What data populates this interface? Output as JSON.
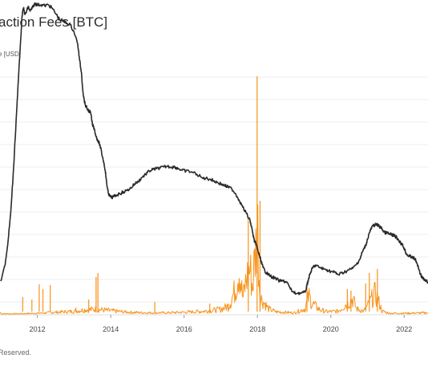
{
  "header": {
    "title": "action Fees [BTC]",
    "legend_label": "e [USD]"
  },
  "footer": {
    "text": " Reserved."
  },
  "chart_data": {
    "type": "line",
    "x_ticks": [
      "2012",
      "2014",
      "2016",
      "2018",
      "2020",
      "2022"
    ],
    "xlim": [
      2010.98,
      2022.65
    ],
    "grid": true,
    "colors": {
      "price": "#2a2a2a",
      "fees": "#f7931a",
      "grid": "#eeeeee"
    },
    "series": [
      {
        "id": "price",
        "axis": "log-left",
        "points": [
          [
            2011.0,
            350
          ],
          [
            2011.12,
            330
          ],
          [
            2011.2,
            300
          ],
          [
            2011.28,
            260
          ],
          [
            2011.35,
            210
          ],
          [
            2011.42,
            150
          ],
          [
            2011.48,
            100
          ],
          [
            2011.55,
            45
          ],
          [
            2011.58,
            20
          ],
          [
            2011.62,
            10
          ],
          [
            2011.66,
            18
          ],
          [
            2011.7,
            15
          ],
          [
            2011.75,
            8
          ],
          [
            2011.8,
            14
          ],
          [
            2011.86,
            10
          ],
          [
            2011.92,
            5
          ],
          [
            2011.96,
            5
          ],
          [
            2012.0,
            6
          ],
          [
            2012.1,
            6
          ],
          [
            2012.2,
            7
          ],
          [
            2012.3,
            6
          ],
          [
            2012.4,
            10
          ],
          [
            2012.5,
            17
          ],
          [
            2012.6,
            24
          ],
          [
            2012.7,
            26
          ],
          [
            2012.8,
            29
          ],
          [
            2012.9,
            31
          ],
          [
            2013.0,
            40
          ],
          [
            2013.1,
            55
          ],
          [
            2013.15,
            75
          ],
          [
            2013.2,
            90
          ],
          [
            2013.25,
            118
          ],
          [
            2013.3,
            130
          ],
          [
            2013.35,
            135
          ],
          [
            2013.4,
            138
          ],
          [
            2013.45,
            140
          ],
          [
            2013.5,
            155
          ],
          [
            2013.55,
            160
          ],
          [
            2013.6,
            170
          ],
          [
            2013.65,
            175
          ],
          [
            2013.7,
            180
          ],
          [
            2013.75,
            190
          ],
          [
            2013.8,
            200
          ],
          [
            2013.85,
            212
          ],
          [
            2013.88,
            225
          ],
          [
            2013.9,
            232
          ],
          [
            2013.93,
            240
          ],
          [
            2013.97,
            244
          ],
          [
            2014.02,
            246
          ],
          [
            2014.07,
            245
          ],
          [
            2014.15,
            243
          ],
          [
            2014.25,
            241
          ],
          [
            2014.35,
            239
          ],
          [
            2014.45,
            237
          ],
          [
            2014.55,
            234
          ],
          [
            2014.65,
            229
          ],
          [
            2014.75,
            226
          ],
          [
            2014.85,
            221
          ],
          [
            2014.95,
            217
          ],
          [
            2015.05,
            213
          ],
          [
            2015.15,
            211
          ],
          [
            2015.25,
            210
          ],
          [
            2015.35,
            209
          ],
          [
            2015.45,
            208
          ],
          [
            2015.55,
            207
          ],
          [
            2015.65,
            208
          ],
          [
            2015.75,
            208
          ],
          [
            2015.85,
            210
          ],
          [
            2015.95,
            212
          ],
          [
            2016.05,
            213
          ],
          [
            2016.2,
            214
          ],
          [
            2016.35,
            217
          ],
          [
            2016.5,
            222
          ],
          [
            2016.6,
            222
          ],
          [
            2016.7,
            223
          ],
          [
            2016.8,
            225
          ],
          [
            2016.9,
            227
          ],
          [
            2017.0,
            229
          ],
          [
            2017.1,
            231
          ],
          [
            2017.2,
            233
          ],
          [
            2017.3,
            235
          ],
          [
            2017.4,
            241
          ],
          [
            2017.5,
            249
          ],
          [
            2017.6,
            258
          ],
          [
            2017.7,
            266
          ],
          [
            2017.8,
            275
          ],
          [
            2017.85,
            285
          ],
          [
            2017.9,
            297
          ],
          [
            2017.93,
            302
          ],
          [
            2017.96,
            303
          ],
          [
            2018.0,
            310
          ],
          [
            2018.05,
            318
          ],
          [
            2018.1,
            325
          ],
          [
            2018.15,
            333
          ],
          [
            2018.2,
            337
          ],
          [
            2018.25,
            340
          ],
          [
            2018.3,
            342
          ],
          [
            2018.4,
            345
          ],
          [
            2018.5,
            347
          ],
          [
            2018.6,
            350
          ],
          [
            2018.7,
            350
          ],
          [
            2018.8,
            351
          ],
          [
            2018.9,
            360
          ],
          [
            2019.0,
            365
          ],
          [
            2019.1,
            365
          ],
          [
            2019.2,
            365
          ],
          [
            2019.3,
            364
          ],
          [
            2019.35,
            355
          ],
          [
            2019.4,
            346
          ],
          [
            2019.45,
            339
          ],
          [
            2019.5,
            334
          ],
          [
            2019.55,
            331
          ],
          [
            2019.6,
            331
          ],
          [
            2019.7,
            333
          ],
          [
            2019.8,
            335
          ],
          [
            2019.9,
            336
          ],
          [
            2020.0,
            338
          ],
          [
            2020.1,
            339
          ],
          [
            2020.2,
            342
          ],
          [
            2020.3,
            340
          ],
          [
            2020.4,
            338
          ],
          [
            2020.5,
            336
          ],
          [
            2020.6,
            334
          ],
          [
            2020.7,
            329
          ],
          [
            2020.8,
            322
          ],
          [
            2020.85,
            315
          ],
          [
            2020.9,
            310
          ],
          [
            2020.95,
            306
          ],
          [
            2021.0,
            298
          ],
          [
            2021.05,
            290
          ],
          [
            2021.1,
            285
          ],
          [
            2021.15,
            281
          ],
          [
            2021.2,
            280
          ],
          [
            2021.25,
            280
          ],
          [
            2021.3,
            281
          ],
          [
            2021.35,
            283
          ],
          [
            2021.4,
            285
          ],
          [
            2021.45,
            289
          ],
          [
            2021.5,
            290
          ],
          [
            2021.55,
            290
          ],
          [
            2021.6,
            292
          ],
          [
            2021.65,
            292
          ],
          [
            2021.7,
            293
          ],
          [
            2021.75,
            294
          ],
          [
            2021.8,
            296
          ],
          [
            2021.85,
            299
          ],
          [
            2021.9,
            302
          ],
          [
            2021.95,
            305
          ],
          [
            2022.0,
            309
          ],
          [
            2022.05,
            315
          ],
          [
            2022.1,
            318
          ],
          [
            2022.15,
            319
          ],
          [
            2022.2,
            320
          ],
          [
            2022.25,
            321
          ],
          [
            2022.3,
            323
          ],
          [
            2022.35,
            328
          ],
          [
            2022.4,
            335
          ],
          [
            2022.45,
            342
          ],
          [
            2022.5,
            346
          ],
          [
            2022.55,
            349
          ],
          [
            2022.6,
            350
          ],
          [
            2022.65,
            351
          ]
        ],
        "note": "values are pixel-free: y here is an internal plot-row reference"
      },
      {
        "id": "fees",
        "axis": "linear-right",
        "envelope": [
          [
            2011.0,
            390
          ],
          [
            2011.5,
            390
          ],
          [
            2012.0,
            389
          ],
          [
            2012.5,
            387
          ],
          [
            2013.0,
            385
          ],
          [
            2013.3,
            382
          ],
          [
            2013.6,
            381
          ],
          [
            2014.0,
            384
          ],
          [
            2014.5,
            387
          ],
          [
            2015.0,
            388
          ],
          [
            2015.5,
            388
          ],
          [
            2016.0,
            387
          ],
          [
            2016.5,
            385
          ],
          [
            2016.8,
            383
          ],
          [
            2017.0,
            381
          ],
          [
            2017.2,
            375
          ],
          [
            2017.3,
            360
          ],
          [
            2017.4,
            340
          ],
          [
            2017.5,
            300
          ],
          [
            2017.55,
            330
          ],
          [
            2017.6,
            360
          ],
          [
            2017.7,
            320
          ],
          [
            2017.8,
            300
          ],
          [
            2017.87,
            340
          ],
          [
            2017.9,
            300
          ],
          [
            2017.95,
            265
          ],
          [
            2018.0,
            200
          ],
          [
            2018.02,
            260
          ],
          [
            2018.05,
            330
          ],
          [
            2018.1,
            360
          ],
          [
            2018.2,
            370
          ],
          [
            2018.3,
            380
          ],
          [
            2018.5,
            386
          ],
          [
            2019.0,
            388
          ],
          [
            2019.3,
            380
          ],
          [
            2019.4,
            355
          ],
          [
            2019.5,
            370
          ],
          [
            2019.7,
            382
          ],
          [
            2019.9,
            386
          ],
          [
            2020.2,
            385
          ],
          [
            2020.4,
            372
          ],
          [
            2020.6,
            360
          ],
          [
            2020.7,
            380
          ],
          [
            2020.9,
            385
          ],
          [
            2021.0,
            375
          ],
          [
            2021.2,
            350
          ],
          [
            2021.3,
            365
          ],
          [
            2021.4,
            385
          ],
          [
            2021.6,
            389
          ],
          [
            2022.0,
            389
          ],
          [
            2022.65,
            388
          ]
        ],
        "spikes": [
          [
            2011.6,
            370
          ],
          [
            2011.85,
            373
          ],
          [
            2012.05,
            354
          ],
          [
            2012.15,
            360
          ],
          [
            2012.35,
            355
          ],
          [
            2013.05,
            383
          ],
          [
            2013.4,
            373
          ],
          [
            2013.6,
            345
          ],
          [
            2013.65,
            340
          ],
          [
            2015.2,
            376
          ],
          [
            2016.7,
            378
          ],
          [
            2017.2,
            378
          ],
          [
            2017.75,
            272
          ],
          [
            2017.99,
            95
          ],
          [
            2018.07,
            250
          ],
          [
            2019.35,
            355
          ],
          [
            2020.45,
            360
          ],
          [
            2020.55,
            362
          ],
          [
            2020.95,
            353
          ],
          [
            2021.05,
            340
          ],
          [
            2021.27,
            335
          ]
        ]
      }
    ]
  }
}
